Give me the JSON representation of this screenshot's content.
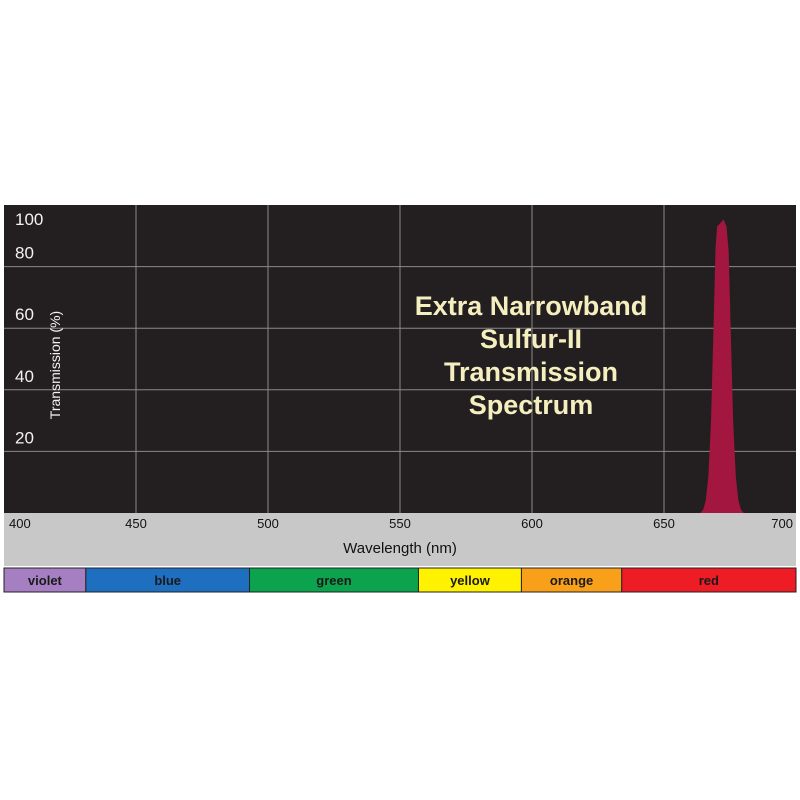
{
  "chart_data": {
    "type": "area",
    "title_lines": [
      "Extra Narrowband",
      "Sulfur-II",
      "Transmission",
      "Spectrum"
    ],
    "xlabel": "Wavelength (nm)",
    "ylabel": "Transmission (%)",
    "xlim": [
      400,
      700
    ],
    "ylim": [
      0,
      100
    ],
    "x_ticks": [
      "400",
      "450",
      "500",
      "550",
      "600",
      "650",
      "700"
    ],
    "y_ticks": [
      "20",
      "40",
      "60",
      "80",
      "100"
    ],
    "grid": true,
    "series": [
      {
        "color": "#a3163f",
        "points": [
          [
            664.0,
            0
          ],
          [
            665.0,
            1
          ],
          [
            666.0,
            4
          ],
          [
            667.0,
            12
          ],
          [
            668.0,
            30
          ],
          [
            669.0,
            62
          ],
          [
            669.7,
            86
          ],
          [
            670.3,
            93
          ],
          [
            671.5,
            94
          ],
          [
            672.5,
            95
          ],
          [
            673.5,
            93
          ],
          [
            674.3,
            85
          ],
          [
            675.0,
            62
          ],
          [
            676.0,
            30
          ],
          [
            677.0,
            12
          ],
          [
            678.0,
            4
          ],
          [
            679.0,
            1
          ],
          [
            680.0,
            0
          ]
        ]
      }
    ],
    "color_bands": [
      {
        "label": "violet",
        "start": 400,
        "end": 431,
        "color": "#a57fc1"
      },
      {
        "label": "blue",
        "start": 431,
        "end": 493,
        "color": "#1f6fc0"
      },
      {
        "label": "green",
        "start": 493,
        "end": 557,
        "color": "#0ba34d"
      },
      {
        "label": "yellow",
        "start": 557,
        "end": 596,
        "color": "#fff200"
      },
      {
        "label": "orange",
        "start": 596,
        "end": 634,
        "color": "#f9a01a"
      },
      {
        "label": "red",
        "start": 634,
        "end": 700,
        "color": "#ee1c25"
      }
    ]
  },
  "colors": {
    "plot_background": "#231f20",
    "grid": "#8a8a8a",
    "title_text": "#f5efbf",
    "axis_text": "#f2f2f2",
    "label_strip": "#c8c8c8"
  }
}
